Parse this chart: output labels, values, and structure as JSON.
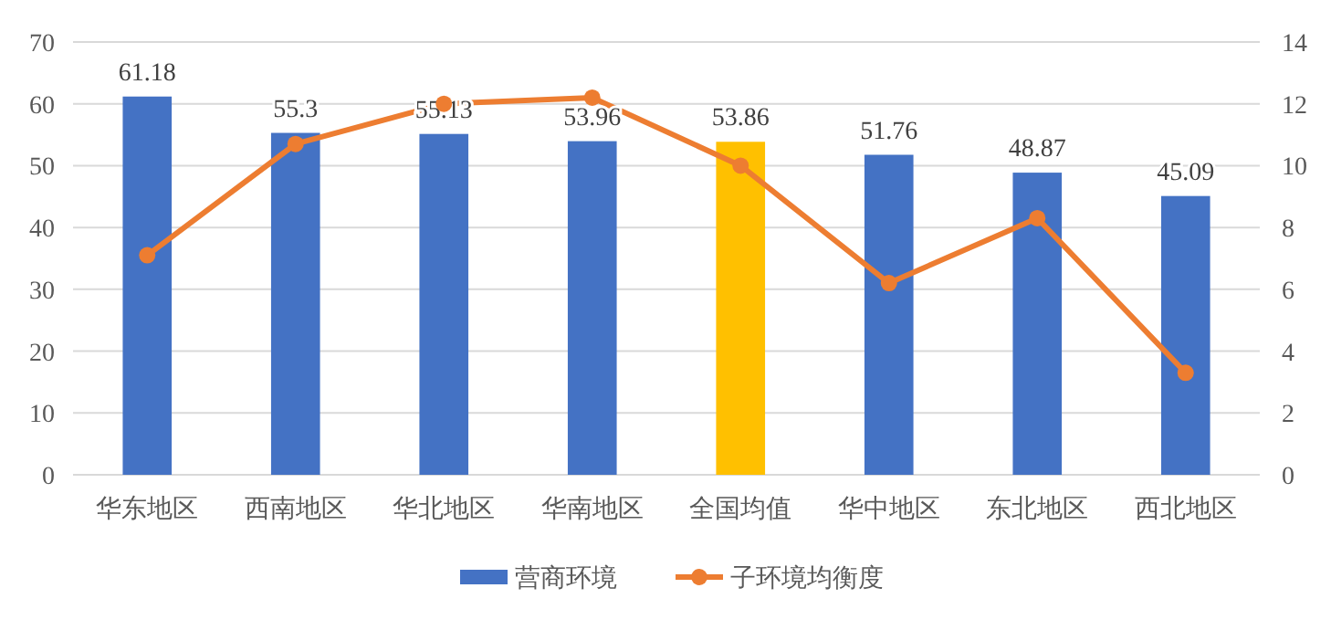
{
  "chart_data": {
    "type": "bar",
    "categories": [
      "华东地区",
      "西南地区",
      "华北地区",
      "华南地区",
      "全国均值",
      "华中地区",
      "东北地区",
      "西北地区"
    ],
    "series": [
      {
        "name": "营商环境",
        "color": "#4472c4",
        "colors": [
          "#4472c4",
          "#4472c4",
          "#4472c4",
          "#4472c4",
          "#ffc000",
          "#4472c4",
          "#4472c4",
          "#4472c4"
        ],
        "values": [
          61.18,
          55.3,
          55.13,
          53.96,
          53.86,
          51.76,
          48.87,
          45.09
        ],
        "value_labels": [
          "61.18",
          "55.3",
          "55.13",
          "53.96",
          "53.86",
          "51.76",
          "48.87",
          "45.09"
        ]
      },
      {
        "name": "子环境均衡度",
        "type": "line",
        "axis": "y2",
        "color": "#ed7d31",
        "values": [
          7.1,
          10.7,
          12.0,
          12.2,
          10.0,
          6.2,
          8.3,
          3.3
        ]
      }
    ],
    "ylim": [
      0,
      70
    ],
    "yticks": [
      0,
      10,
      20,
      30,
      40,
      50,
      60,
      70
    ],
    "y2lim": [
      0,
      14
    ],
    "y2ticks": [
      0,
      2,
      4,
      6,
      8,
      10,
      12,
      14
    ],
    "grid": "y",
    "legend": "bottom",
    "marker": "circle",
    "line_style": "solid"
  }
}
